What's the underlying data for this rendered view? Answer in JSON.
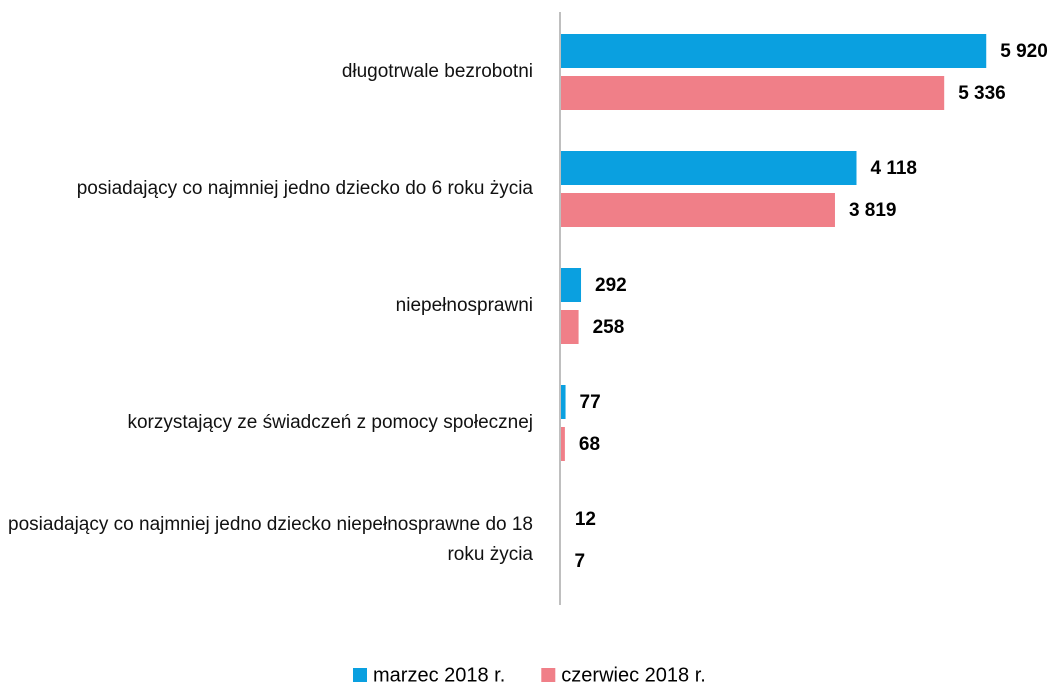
{
  "chart_data": {
    "type": "hbar",
    "categories": [
      "długotrwale bezrobotni",
      "posiadający co najmniej jedno dziecko do 6 roku życia",
      "niepełnosprawni",
      "korzystający ze świadczeń z pomocy społecznej",
      "posiadający co najmniej jedno dziecko niepełnosprawne do 18 roku życia"
    ],
    "series": [
      {
        "name": "marzec 2018 r.",
        "color": "#0aa0e0",
        "values": [
          5920,
          4118,
          292,
          77,
          12
        ],
        "value_labels": [
          "5 920",
          "4 118",
          "292",
          "77",
          "12"
        ]
      },
      {
        "name": "czerwiec 2018 r.",
        "color": "#f07f88",
        "values": [
          5336,
          3819,
          258,
          68,
          7
        ],
        "value_labels": [
          "5 336",
          "3 819",
          "258",
          "68",
          "7"
        ]
      }
    ],
    "xlim": [
      0,
      6000
    ],
    "legend": "bottom"
  }
}
